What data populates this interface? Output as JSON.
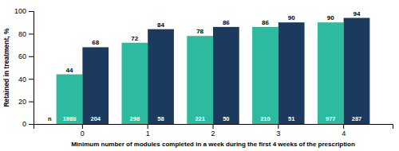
{
  "chart_data": {
    "type": "bar",
    "xlabel": "Minimum number of modules completed in a week during the first 4 weeks of the prescription",
    "ylabel": "Retained in treatment, %",
    "categories": [
      0,
      1,
      2,
      3,
      4
    ],
    "series": [
      {
        "color": "#2dbba0",
        "values": [
          44,
          72,
          78,
          86,
          90
        ],
        "n": [
          1988,
          298,
          221,
          210,
          977
        ]
      },
      {
        "color": "#1c3a5e",
        "values": [
          68,
          84,
          86,
          90,
          94
        ],
        "n": [
          204,
          58,
          50,
          51,
          287
        ]
      }
    ],
    "annotations": [
      "n"
    ],
    "ylim": [
      0,
      100
    ],
    "yticks": [
      0,
      20,
      40,
      60,
      80,
      100
    ],
    "data_labels": true
  }
}
